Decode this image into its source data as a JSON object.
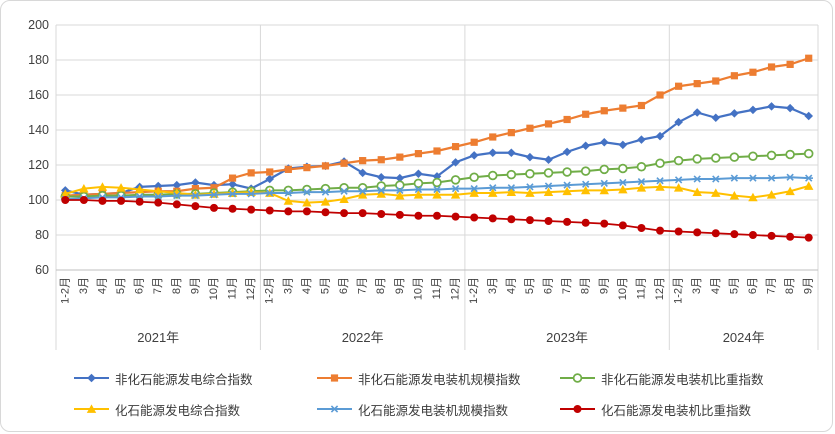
{
  "chart_data": {
    "type": "line",
    "title": "",
    "grid": true,
    "legend_position": "bottom",
    "ylim": [
      60,
      200
    ],
    "ytick_step": 20,
    "x": [
      "1-2月",
      "3月",
      "4月",
      "5月",
      "6月",
      "7月",
      "8月",
      "9月",
      "10月",
      "11月",
      "12月",
      "1-2月",
      "3月",
      "4月",
      "5月",
      "6月",
      "7月",
      "8月",
      "9月",
      "10月",
      "11月",
      "12月",
      "1-2月",
      "3月",
      "4月",
      "5月",
      "6月",
      "7月",
      "8月",
      "9月",
      "10月",
      "11月",
      "12月",
      "1-2月",
      "3月",
      "4月",
      "5月",
      "6月",
      "7月",
      "8月",
      "9月"
    ],
    "year_groups": [
      {
        "label": "2021年",
        "count": 11
      },
      {
        "label": "2022年",
        "count": 11
      },
      {
        "label": "2023年",
        "count": 11
      },
      {
        "label": "2024年",
        "count": 8
      }
    ],
    "axis_colors": {
      "gridline": "#d9d9d9",
      "axis_line": "#bfbfbf",
      "tick_text": "#404040"
    },
    "series": [
      {
        "id": "non-fossil-power-composite-index",
        "name": "非化石能源发电综合指数",
        "color": "#4472C4",
        "marker": "diamond",
        "line_width": 2.2,
        "values": [
          105.5,
          103,
          103.5,
          104,
          107.5,
          108,
          108.5,
          110,
          108.5,
          109,
          106.5,
          112,
          118,
          119,
          119.5,
          122,
          115.5,
          113,
          112.5,
          115,
          113.5,
          121.5,
          125.5,
          127,
          127,
          124.5,
          123,
          127.5,
          131,
          133,
          131.5,
          134.5,
          136.5,
          144.5,
          150,
          147,
          149.5,
          151.5,
          153.5,
          152.5,
          148
        ]
      },
      {
        "id": "non-fossil-installed-capacity-scale-index",
        "name": "非化石能源发电装机规模指数",
        "color": "#ED7D31",
        "marker": "square",
        "line_width": 2.2,
        "values": [
          102.5,
          103,
          103.5,
          104,
          104.5,
          105,
          105,
          106.5,
          107,
          112.5,
          115.5,
          116,
          117.5,
          118.5,
          119.5,
          121,
          122.5,
          123,
          124.5,
          126.5,
          128,
          130.5,
          133,
          136,
          138.5,
          141,
          143.5,
          146,
          149,
          151,
          152.5,
          154,
          160,
          165,
          166.5,
          168,
          171,
          173,
          176,
          177.5,
          181
        ]
      },
      {
        "id": "non-fossil-installed-capacity-share-index",
        "name": "非化石能源发电装机比重指数",
        "color": "#70AD47",
        "marker": "circle-open",
        "line_width": 2,
        "values": [
          102,
          102,
          102.5,
          102.5,
          103,
          103,
          103.5,
          103.5,
          104,
          104.5,
          105,
          105.5,
          105.5,
          106,
          106.5,
          107,
          107,
          108,
          108.5,
          109.5,
          110,
          111.5,
          113,
          114,
          114.5,
          115,
          115.5,
          116,
          116.5,
          117.5,
          118,
          119,
          121,
          122.5,
          123.5,
          124,
          124.5,
          125,
          125.5,
          126,
          126.5
        ]
      },
      {
        "id": "fossil-power-composite-index",
        "name": "化石能源发电综合指数",
        "color": "#FFC000",
        "marker": "triangle",
        "line_width": 2,
        "values": [
          103.5,
          106.5,
          107.5,
          107,
          106,
          105,
          104,
          103,
          103.5,
          104,
          104.5,
          104,
          99.5,
          98.5,
          99,
          100.5,
          103,
          103.5,
          102.5,
          103,
          103,
          103,
          104,
          104,
          104.5,
          104,
          104.5,
          105,
          105.5,
          105.5,
          106,
          107,
          107.5,
          107,
          104.5,
          104,
          102.5,
          101.5,
          103,
          105,
          108
        ]
      },
      {
        "id": "fossil-installed-capacity-scale-index",
        "name": "化石能源发电装机规模指数",
        "color": "#5B9BD5",
        "marker": "asterisk",
        "line_width": 2,
        "values": [
          100.5,
          101,
          101.5,
          101.5,
          102,
          102,
          102.5,
          102.5,
          103,
          103.5,
          103.5,
          104,
          104,
          104.5,
          104.5,
          105,
          105,
          105.5,
          105.5,
          106,
          106,
          106.5,
          106.5,
          107,
          107,
          107.5,
          108,
          108.5,
          109,
          109.5,
          110,
          110.5,
          111,
          111.5,
          112,
          112,
          112.5,
          112.5,
          112.5,
          113,
          112.5
        ]
      },
      {
        "id": "fossil-installed-capacity-share-index",
        "name": "化石能源发电装机比重指数",
        "color": "#C00000",
        "marker": "circle",
        "line_width": 1.8,
        "values": [
          100,
          100,
          99.5,
          99.5,
          99,
          98.5,
          97.5,
          96.5,
          95.5,
          95,
          94.5,
          94,
          93.5,
          93.5,
          93,
          92.5,
          92.5,
          92,
          91.5,
          91,
          91,
          90.5,
          90,
          89.5,
          89,
          88.5,
          88,
          87.5,
          87,
          86.5,
          85.5,
          84,
          82.5,
          82,
          81.5,
          81,
          80.5,
          80,
          79.5,
          79,
          78.5
        ]
      }
    ]
  }
}
